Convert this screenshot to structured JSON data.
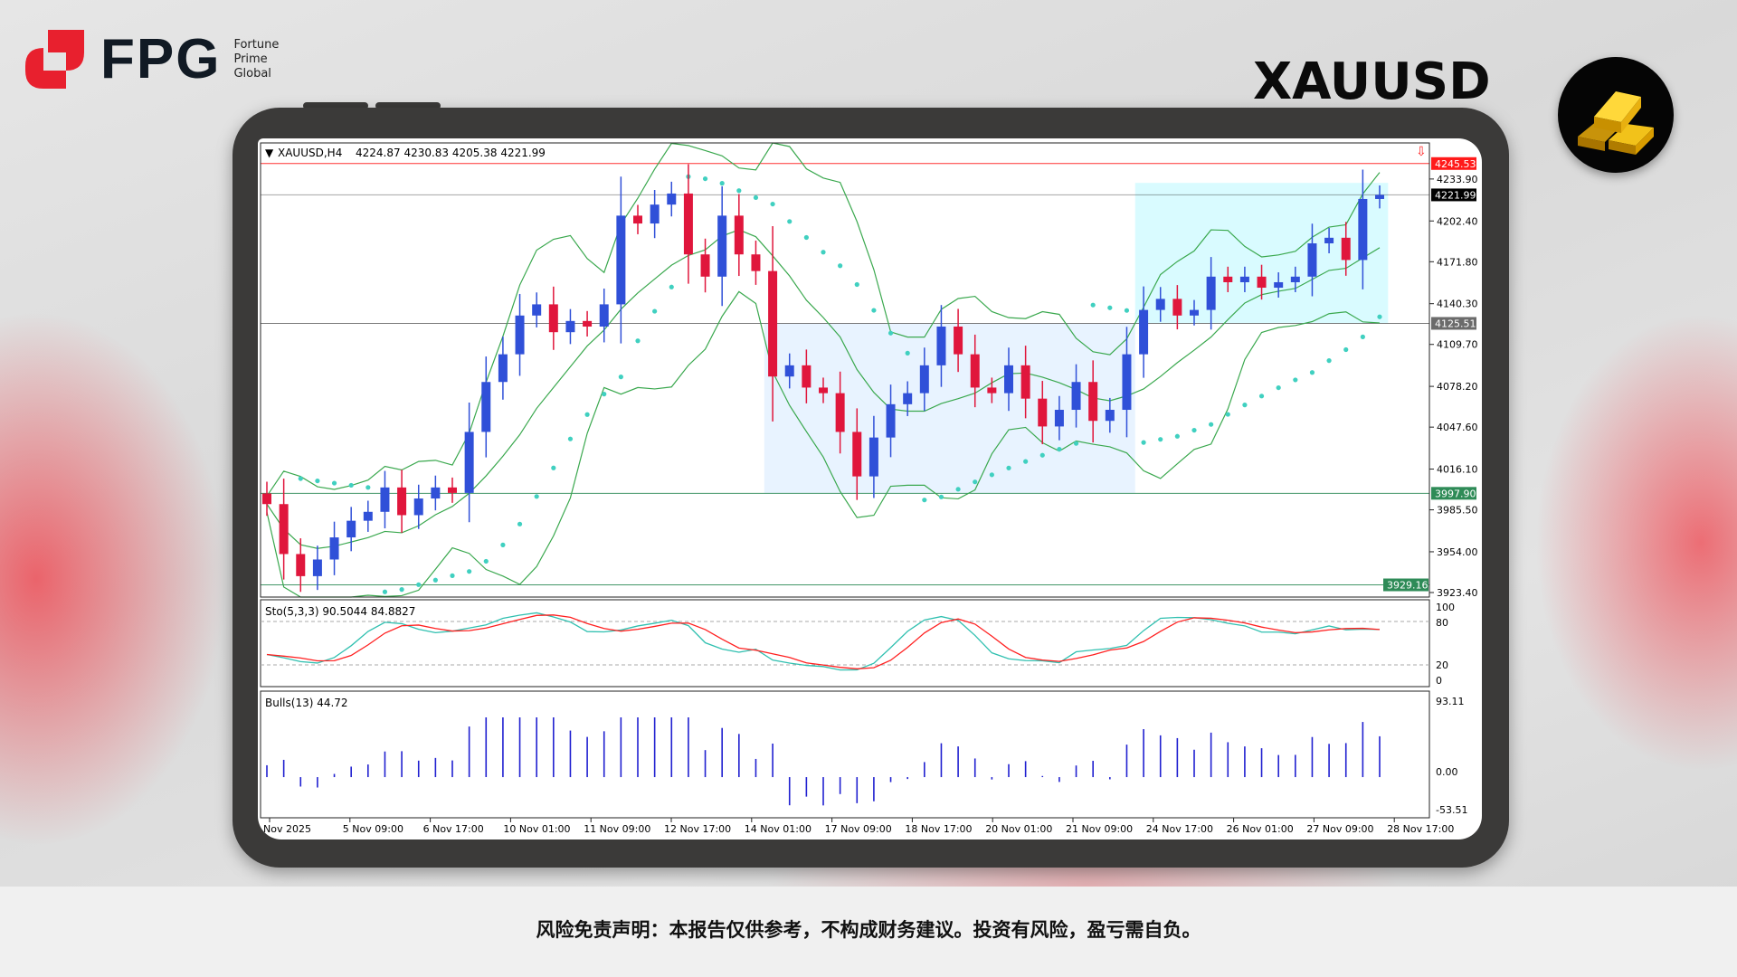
{
  "brand": {
    "name": "FPG",
    "tagline": [
      "Fortune",
      "Prime",
      "Global"
    ],
    "color": "#e8202e"
  },
  "header": {
    "symbol": "XAUUSD",
    "icon": "gold-bars-icon"
  },
  "chart_data": {
    "type": "candlestick",
    "title": "XAUUSD,H4",
    "ohlc_readout": "4224.87 4230.83 4205.38 4221.99",
    "ylim": [
      3920,
      4261
    ],
    "price_ticks": [
      4233.9,
      4202.4,
      4171.8,
      4140.3,
      4109.7,
      4078.2,
      4047.6,
      4016.1,
      3985.5,
      3954.0,
      3923.4
    ],
    "price_tick_labels": [
      "4233.90",
      "4202.40",
      "4171.80",
      "4140.30",
      "4109.70",
      "4078.20",
      "4047.60",
      "4016.10",
      "3985.50",
      "3954.00",
      "3923.40"
    ],
    "price_tags": [
      {
        "value": 4245.53,
        "label": "4245.53",
        "color": "#ff1a1a"
      },
      {
        "value": 4221.99,
        "label": "4221.99",
        "color": "#000000"
      },
      {
        "value": 4125.51,
        "label": "4125.51",
        "color": "#6b6b6b"
      },
      {
        "value": 3997.9,
        "label": "3997.90",
        "color": "#2e8b57"
      },
      {
        "value": 3929.16,
        "label": "3929.16",
        "color": "#2e8b57"
      }
    ],
    "zones": [
      {
        "from_index": 30,
        "to_index": 51,
        "low": 3997.9,
        "high": 4125.51,
        "color": "#e8f3ff"
      },
      {
        "from_index": 52,
        "to_index": 66,
        "low": 4125.51,
        "high": 4231,
        "color": "#d9fbff"
      }
    ],
    "closes": [
      3989.8,
      3952.3,
      3935.7,
      3948.2,
      3964.8,
      3977.3,
      3984.0,
      4002.3,
      3981.5,
      3994.0,
      4002.3,
      3998.2,
      4044.0,
      4081.5,
      4102.3,
      4131.4,
      4139.8,
      4118.9,
      4127.3,
      4123.1,
      4139.8,
      4206.4,
      4200.5,
      4214.7,
      4223.0,
      4177.3,
      4160.6,
      4206.4,
      4177.3,
      4164.8,
      4085.6,
      4094.0,
      4077.3,
      4073.1,
      4044.0,
      4010.6,
      4039.8,
      4064.8,
      4073.1,
      4094.0,
      4123.1,
      4102.3,
      4077.3,
      4073.1,
      4094.0,
      4069.0,
      4048.1,
      4060.6,
      4081.5,
      4052.3,
      4060.6,
      4102.3,
      4135.6,
      4143.9,
      4131.4,
      4135.6,
      4160.6,
      4156.4,
      4160.6,
      4152.3,
      4156.4,
      4160.6,
      4185.6,
      4189.8,
      4173.1,
      4218.9,
      4221.99
    ],
    "up_color": "#3050d8",
    "down_color": "#e0163c",
    "band_color": "#3aa84e",
    "sar_color": "#40d0c0",
    "time_labels": [
      "Nov 2025",
      "5 Nov 09:00",
      "6 Nov 17:00",
      "10 Nov 01:00",
      "11 Nov 09:00",
      "12 Nov 17:00",
      "14 Nov 01:00",
      "17 Nov 09:00",
      "18 Nov 17:00",
      "20 Nov 01:00",
      "21 Nov 09:00",
      "24 Nov 17:00",
      "26 Nov 01:00",
      "27 Nov 09:00",
      "28 Nov 17:00"
    ],
    "stochastic": {
      "label": "Sto(5,3,3) 90.5044 84.8827",
      "levels": [
        80,
        20
      ],
      "tick_labels": [
        "100",
        "80",
        "20",
        "0"
      ],
      "main_color": "#30c0b0",
      "signal_color": "#ff2020"
    },
    "bulls": {
      "label": "Bulls(13) 44.72",
      "tick_labels": [
        "93.11",
        "0.00",
        "-53.51"
      ],
      "range": [
        -53.51,
        93.11
      ],
      "color": "#2020d0"
    }
  },
  "footer": {
    "disclaimer": "风险免责声明：本报告仅供参考，不构成财务建议。投资有风险，盈亏需自负。"
  }
}
